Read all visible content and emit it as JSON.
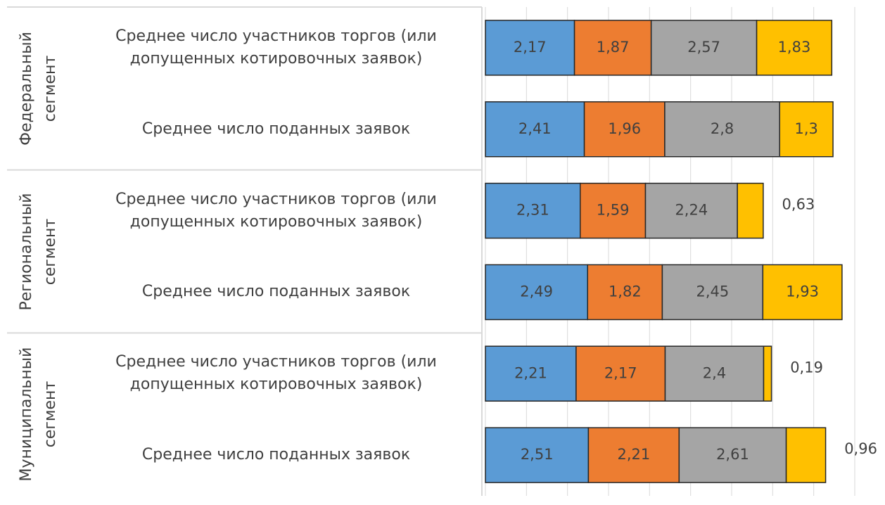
{
  "chart_data": {
    "type": "stacked-barh",
    "groups": [
      "Федеральный сегмент",
      "Региональный сегмент",
      "Муниципальный сегмент"
    ],
    "categories": [
      "Среднее число участников торгов (или допущенных котировочных заявок)",
      "Среднее число поданных заявок",
      "Среднее число участников торгов (или допущенных котировочных заявок)",
      "Среднее число поданных заявок",
      "Среднее число участников торгов (или допущенных котировочных заявок)",
      "Среднее число поданных заявок"
    ],
    "series": [
      {
        "color": "#5b9bd5",
        "values": [
          2.17,
          2.41,
          2.31,
          2.49,
          2.21,
          2.51
        ],
        "value_labels": [
          "2,17",
          "2,41",
          "2,31",
          "2,49",
          "2,21",
          "2,51"
        ]
      },
      {
        "color": "#ed7d31",
        "values": [
          1.87,
          1.96,
          1.59,
          1.82,
          2.17,
          2.21
        ],
        "value_labels": [
          "1,87",
          "1,96",
          "1,59",
          "1,82",
          "2,17",
          "2,21"
        ]
      },
      {
        "color": "#a5a5a5",
        "values": [
          2.57,
          2.8,
          2.24,
          2.45,
          2.4,
          2.61
        ],
        "value_labels": [
          "2,57",
          "2,8",
          "2,24",
          "2,45",
          "2,4",
          "2,61"
        ]
      },
      {
        "color": "#ffc000",
        "values": [
          1.83,
          1.3,
          0.63,
          1.93,
          0.19,
          0.96
        ],
        "value_labels": [
          "1,83",
          "1,3",
          "0,63",
          "1,93",
          "0,19",
          "0,96"
        ]
      }
    ],
    "xlim": [
      0,
      9
    ],
    "xticks": [
      0,
      1,
      2,
      3,
      4,
      5,
      6,
      7,
      8,
      9
    ],
    "grid": true
  }
}
